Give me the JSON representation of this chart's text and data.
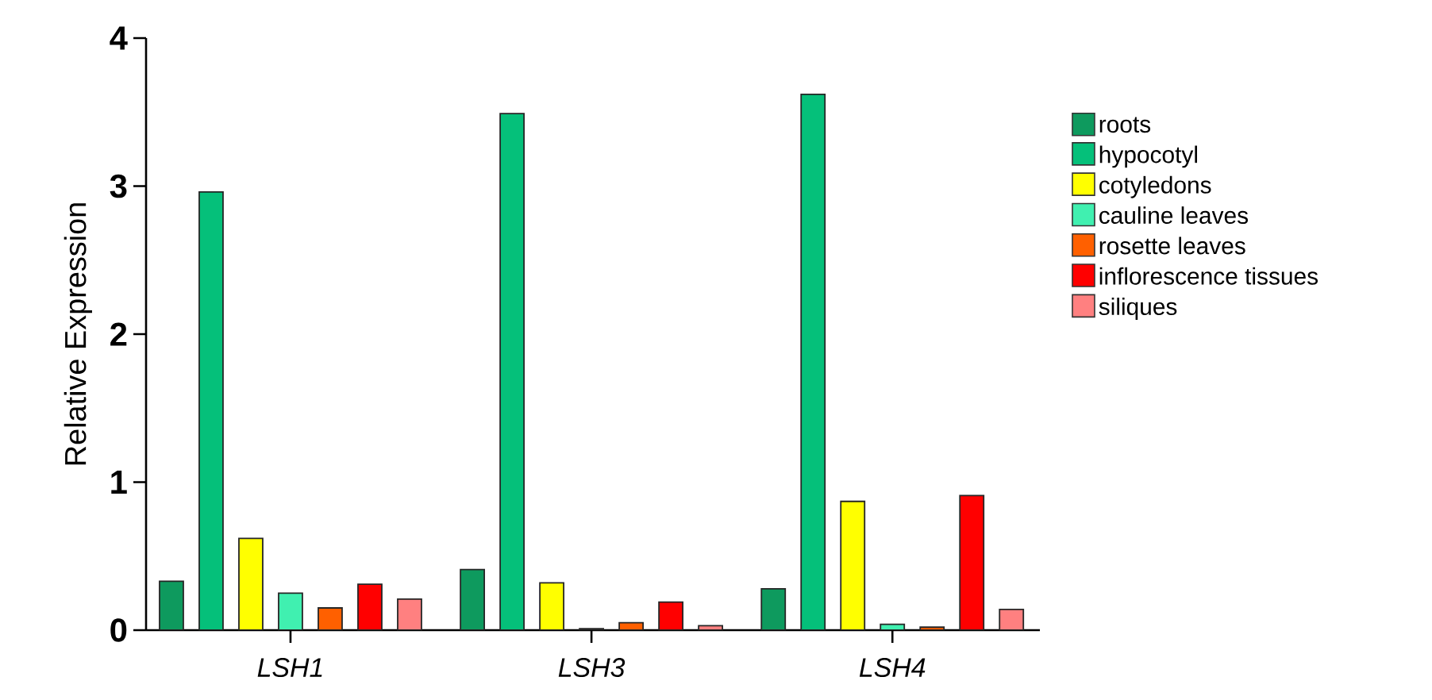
{
  "chart_data": {
    "type": "bar",
    "ylabel": "Relative Expression",
    "categories": [
      "LSH1",
      "LSH3",
      "LSH4"
    ],
    "series": [
      {
        "name": "roots",
        "color": "#0e9a5e",
        "values": [
          0.33,
          0.41,
          0.28
        ]
      },
      {
        "name": "hypocotyl",
        "color": "#05c07a",
        "values": [
          2.96,
          3.49,
          3.62
        ]
      },
      {
        "name": "cotyledons",
        "color": "#ffff00",
        "values": [
          0.62,
          0.32,
          0.87
        ]
      },
      {
        "name": "cauline leaves",
        "color": "#40f0b0",
        "values": [
          0.25,
          0.01,
          0.04
        ]
      },
      {
        "name": "rosette leaves",
        "color": "#ff6000",
        "values": [
          0.15,
          0.05,
          0.02
        ]
      },
      {
        "name": "inflorescence tissues",
        "color": "#ff0000",
        "values": [
          0.31,
          0.19,
          0.91
        ]
      },
      {
        "name": "siliques",
        "color": "#ff8080",
        "values": [
          0.21,
          0.03,
          0.14
        ]
      }
    ],
    "ylim": [
      0,
      4
    ],
    "yticks": [
      0,
      1,
      2,
      3,
      4
    ],
    "legend": "right"
  }
}
